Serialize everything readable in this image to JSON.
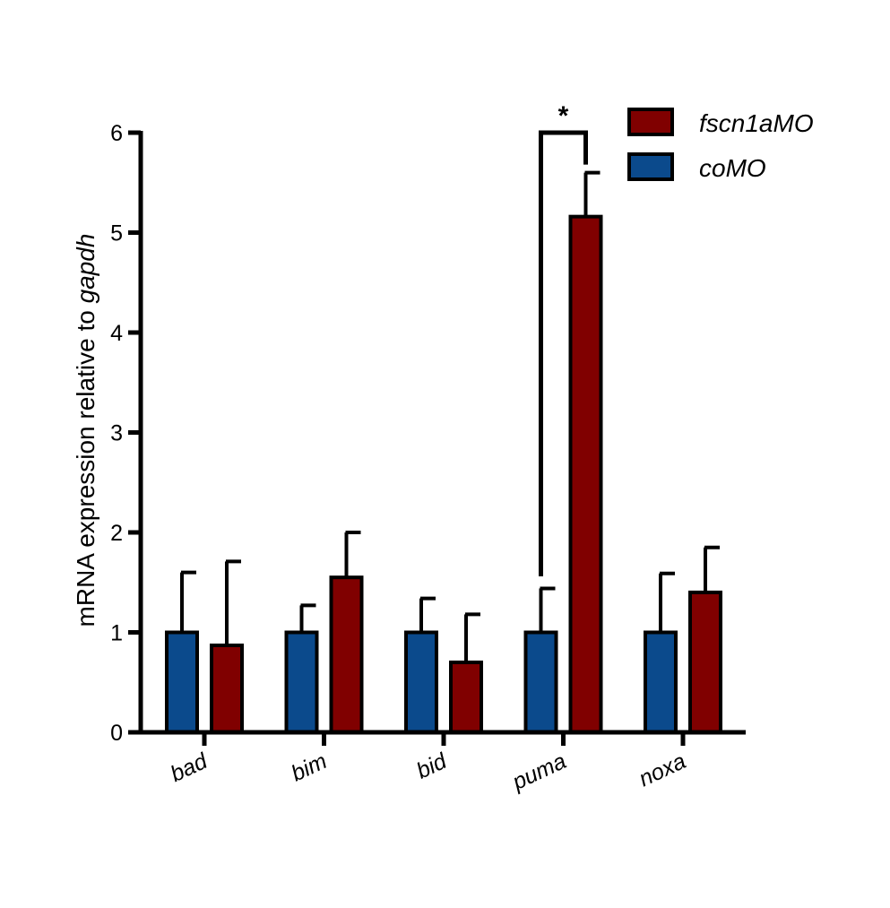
{
  "chart_data": {
    "type": "bar",
    "categories": [
      "bad",
      "bim",
      "bid",
      "puma",
      "noxa"
    ],
    "series": [
      {
        "name": "coMO",
        "color": "#0b4a8c",
        "values": [
          1.0,
          1.0,
          1.0,
          1.0,
          1.0
        ],
        "errors": [
          0.6,
          0.27,
          0.34,
          0.44,
          0.59
        ]
      },
      {
        "name": "fscn1aMO",
        "color": "#800000",
        "values": [
          0.87,
          1.55,
          0.7,
          5.16,
          1.4
        ],
        "errors": [
          0.84,
          0.45,
          0.48,
          0.44,
          0.45
        ]
      }
    ],
    "ylabel_prefix": "mRNA expression relative to ",
    "ylabel_gene": "gapdh",
    "ylim": [
      0,
      6
    ],
    "yticks": [
      "0",
      "1",
      "2",
      "3",
      "4",
      "5",
      "6"
    ],
    "legend_position": "top-right",
    "legend_order": [
      "fscn1aMO",
      "coMO"
    ],
    "significance": {
      "category": "puma",
      "label": "*"
    },
    "grid": false
  }
}
